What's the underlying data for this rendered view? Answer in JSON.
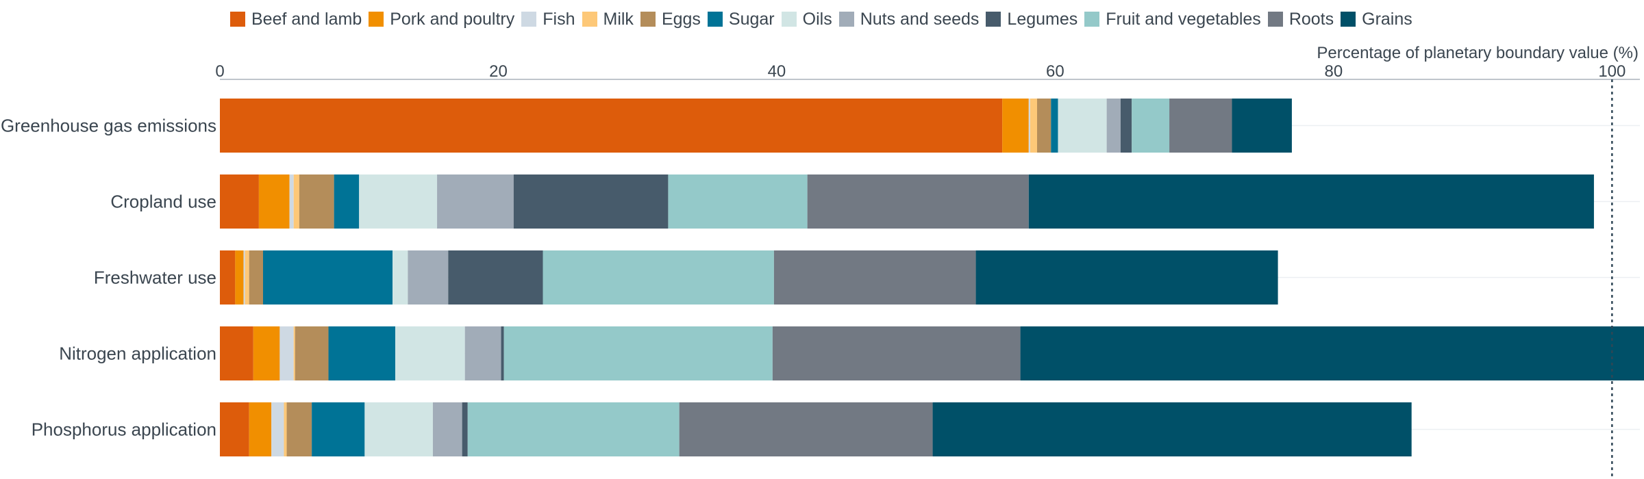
{
  "chart_data": {
    "type": "bar",
    "orientation": "horizontal",
    "stacked": true,
    "title": "",
    "xlabel": "Percentage of planetary boundary value (%)",
    "ylabel": "",
    "xlim": [
      0,
      102
    ],
    "xticks": [
      0,
      20,
      40,
      60,
      80,
      100
    ],
    "reference_line": 100,
    "legend_position": "top",
    "categories": [
      "Greenhouse gas emissions",
      "Cropland use",
      "Freshwater use",
      "Nitrogen application",
      "Phosphorus application"
    ],
    "series": [
      {
        "name": "Beef and lamb",
        "color": "#dd5c0b",
        "values": [
          56.2,
          2.8,
          1.1,
          2.4,
          2.1
        ]
      },
      {
        "name": "Pork and poultry",
        "color": "#f18f00",
        "values": [
          1.9,
          2.2,
          0.6,
          1.9,
          1.6
        ]
      },
      {
        "name": "Fish",
        "color": "#ced9e3",
        "values": [
          0.1,
          0.3,
          0.1,
          1.0,
          0.9
        ]
      },
      {
        "name": "Milk",
        "color": "#fdc878",
        "values": [
          0.5,
          0.4,
          0.3,
          0.1,
          0.2
        ]
      },
      {
        "name": "Eggs",
        "color": "#b48d5a",
        "values": [
          1.0,
          2.5,
          1.0,
          2.4,
          1.8
        ]
      },
      {
        "name": "Sugar",
        "color": "#007396",
        "values": [
          0.5,
          1.8,
          9.3,
          4.8,
          3.8
        ]
      },
      {
        "name": "Oils",
        "color": "#d1e5e4",
        "values": [
          3.5,
          5.6,
          1.1,
          5.0,
          4.9
        ]
      },
      {
        "name": "Nuts and seeds",
        "color": "#a1acb8",
        "values": [
          1.0,
          5.5,
          2.9,
          2.6,
          2.1
        ]
      },
      {
        "name": "Legumes",
        "color": "#475b6b",
        "values": [
          0.8,
          11.1,
          6.8,
          0.2,
          0.4
        ]
      },
      {
        "name": "Fruit and vegetables",
        "color": "#94c9c9",
        "values": [
          2.7,
          10.0,
          16.6,
          19.3,
          15.2
        ]
      },
      {
        "name": "Roots",
        "color": "#727983",
        "values": [
          4.5,
          15.9,
          14.5,
          17.8,
          18.2
        ]
      },
      {
        "name": "Grains",
        "color": "#005068",
        "values": [
          4.3,
          40.6,
          21.7,
          44.8,
          34.4
        ]
      }
    ]
  }
}
